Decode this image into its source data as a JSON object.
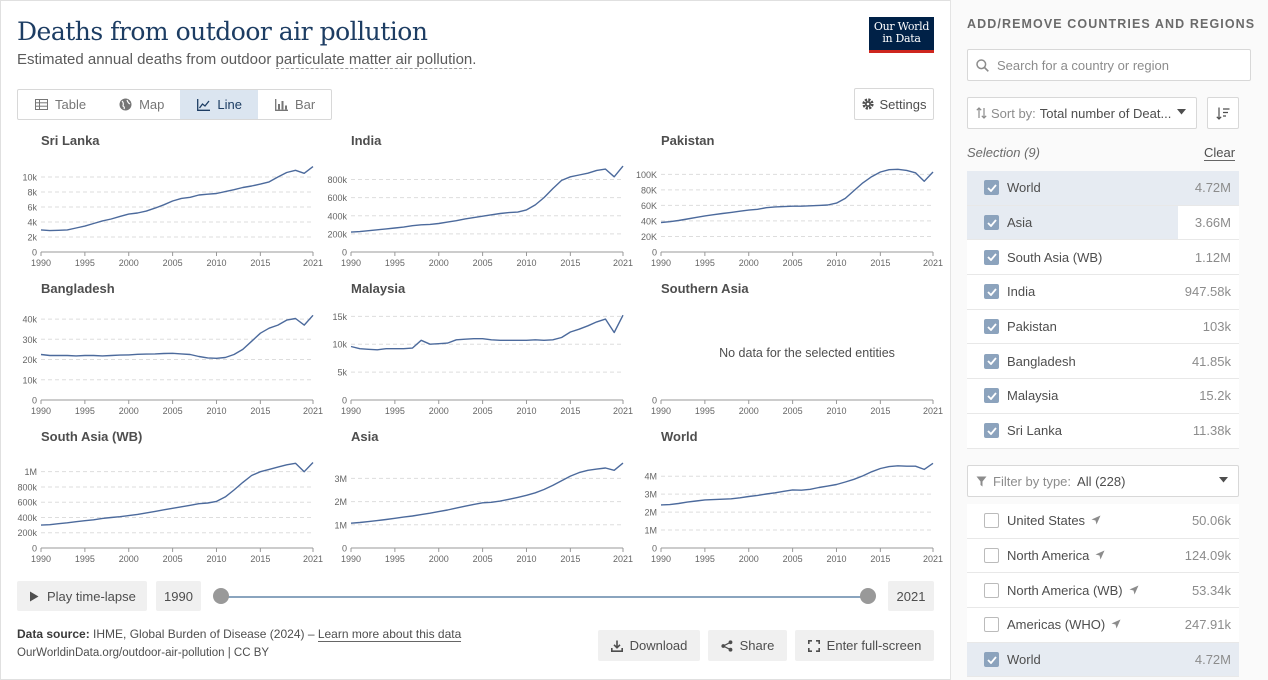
{
  "header": {
    "title": "Deaths from outdoor air pollution",
    "subtitle_prefix": "Estimated annual deaths from outdoor ",
    "subtitle_link": "particulate matter air pollution",
    "subtitle_suffix": ".",
    "logo_line1": "Our World",
    "logo_line2": "in Data"
  },
  "tabs": [
    {
      "label": "Table",
      "icon": "table-icon",
      "active": false
    },
    {
      "label": "Map",
      "icon": "globe-icon",
      "active": false
    },
    {
      "label": "Line",
      "icon": "line-chart-icon",
      "active": true
    },
    {
      "label": "Bar",
      "icon": "bar-chart-icon",
      "active": false
    }
  ],
  "settings_label": "Settings",
  "no_data_text": "No data for the selected entities",
  "colors": {
    "line": "#4c6a9c",
    "accent": "#1d3d63"
  },
  "chart_data": [
    {
      "type": "line",
      "title": "Sri Lanka",
      "x": [
        1990,
        1991,
        1992,
        1993,
        1994,
        1995,
        1996,
        1997,
        1998,
        1999,
        2000,
        2001,
        2002,
        2003,
        2004,
        2005,
        2006,
        2007,
        2008,
        2009,
        2010,
        2011,
        2012,
        2013,
        2014,
        2015,
        2016,
        2017,
        2018,
        2019,
        2020,
        2021
      ],
      "values": [
        2950,
        2850,
        2900,
        2950,
        3200,
        3450,
        3800,
        4150,
        4400,
        4750,
        5050,
        5200,
        5450,
        5850,
        6300,
        6800,
        7150,
        7300,
        7600,
        7700,
        7800,
        8050,
        8300,
        8600,
        8800,
        9050,
        9350,
        10000,
        10600,
        10900,
        10500,
        11380
      ],
      "yticks": [
        0,
        2000,
        4000,
        6000,
        8000,
        10000
      ],
      "ytick_labels": [
        "0",
        "2k",
        "4k",
        "6k",
        "8k",
        "10k"
      ],
      "ylim": [
        0,
        11600
      ]
    },
    {
      "type": "line",
      "title": "India",
      "x": [
        1990,
        1991,
        1992,
        1993,
        1994,
        1995,
        1996,
        1997,
        1998,
        1999,
        2000,
        2001,
        2002,
        2003,
        2004,
        2005,
        2006,
        2007,
        2008,
        2009,
        2010,
        2011,
        2012,
        2013,
        2014,
        2015,
        2016,
        2017,
        2018,
        2019,
        2020,
        2021
      ],
      "values": [
        220000,
        225000,
        235000,
        245000,
        255000,
        265000,
        275000,
        290000,
        300000,
        305000,
        315000,
        330000,
        345000,
        365000,
        380000,
        395000,
        410000,
        425000,
        435000,
        440000,
        465000,
        520000,
        600000,
        700000,
        790000,
        830000,
        850000,
        870000,
        900000,
        915000,
        830000,
        947580
      ],
      "yticks": [
        0,
        200000,
        400000,
        600000,
        800000
      ],
      "ytick_labels": [
        "0",
        "200k",
        "400k",
        "600k",
        "800k"
      ],
      "ylim": [
        0,
        960000
      ]
    },
    {
      "type": "line",
      "title": "Pakistan",
      "x": [
        1990,
        1991,
        1992,
        1993,
        1994,
        1995,
        1996,
        1997,
        1998,
        1999,
        2000,
        2001,
        2002,
        2003,
        2004,
        2005,
        2006,
        2007,
        2008,
        2009,
        2010,
        2011,
        2012,
        2013,
        2014,
        2015,
        2016,
        2017,
        2018,
        2019,
        2020,
        2021
      ],
      "values": [
        38000,
        39000,
        40500,
        42500,
        44500,
        46500,
        48000,
        49500,
        51000,
        52500,
        54000,
        55000,
        57000,
        58000,
        58500,
        59000,
        59000,
        59500,
        60000,
        60500,
        63000,
        69000,
        79000,
        89000,
        97000,
        103000,
        106000,
        106500,
        105000,
        102000,
        91000,
        103000
      ],
      "yticks": [
        0,
        20000,
        40000,
        60000,
        80000,
        100000
      ],
      "ytick_labels": [
        "0",
        "20K",
        "40K",
        "60K",
        "80K",
        "100K"
      ],
      "ylim": [
        0,
        112000
      ]
    },
    {
      "type": "line",
      "title": "Bangladesh",
      "x": [
        1990,
        1991,
        1992,
        1993,
        1994,
        1995,
        1996,
        1997,
        1998,
        1999,
        2000,
        2001,
        2002,
        2003,
        2004,
        2005,
        2006,
        2007,
        2008,
        2009,
        2010,
        2011,
        2012,
        2013,
        2014,
        2015,
        2016,
        2017,
        2018,
        2019,
        2020,
        2021
      ],
      "values": [
        22500,
        22000,
        22000,
        22000,
        21800,
        22000,
        22000,
        21800,
        22000,
        22200,
        22300,
        22600,
        22700,
        22800,
        23000,
        23100,
        22800,
        22500,
        21500,
        20800,
        20600,
        21000,
        22500,
        25000,
        29000,
        33000,
        35500,
        37000,
        39500,
        40300,
        37000,
        41850
      ],
      "yticks": [
        0,
        10000,
        20000,
        30000,
        40000
      ],
      "ytick_labels": [
        "0",
        "10k",
        "20k",
        "30k",
        "40k"
      ],
      "ylim": [
        0,
        43000
      ]
    },
    {
      "type": "line",
      "title": "Malaysia",
      "x": [
        1990,
        1991,
        1992,
        1993,
        1994,
        1995,
        1996,
        1997,
        1998,
        1999,
        2000,
        2001,
        2002,
        2003,
        2004,
        2005,
        2006,
        2007,
        2008,
        2009,
        2010,
        2011,
        2012,
        2013,
        2014,
        2015,
        2016,
        2017,
        2018,
        2019,
        2020,
        2021
      ],
      "values": [
        9600,
        9200,
        9100,
        9000,
        9200,
        9200,
        9200,
        9300,
        10700,
        10000,
        10100,
        10200,
        10800,
        10900,
        11000,
        11000,
        10800,
        10700,
        10700,
        10700,
        10700,
        10800,
        10700,
        10800,
        11200,
        12200,
        12700,
        13300,
        14000,
        14500,
        12100,
        15200
      ],
      "yticks": [
        0,
        5000,
        10000,
        15000
      ],
      "ytick_labels": [
        "0",
        "5k",
        "10k",
        "15k"
      ],
      "ylim": [
        0,
        15600
      ]
    },
    {
      "type": "line",
      "title": "Southern Asia",
      "x": [],
      "values": [],
      "yticks": [
        0
      ],
      "ytick_labels": [
        "0"
      ],
      "ylim": [
        0,
        1
      ],
      "no_data": true
    },
    {
      "type": "line",
      "title": "South Asia (WB)",
      "x": [
        1990,
        1991,
        1992,
        1993,
        1994,
        1995,
        1996,
        1997,
        1998,
        1999,
        2000,
        2001,
        2002,
        2003,
        2004,
        2005,
        2006,
        2007,
        2008,
        2009,
        2010,
        2011,
        2012,
        2013,
        2014,
        2015,
        2016,
        2017,
        2018,
        2019,
        2020,
        2021
      ],
      "values": [
        300000,
        305000,
        318000,
        330000,
        345000,
        358000,
        370000,
        388000,
        400000,
        410000,
        425000,
        440000,
        460000,
        480000,
        500000,
        520000,
        540000,
        560000,
        580000,
        590000,
        610000,
        670000,
        760000,
        860000,
        950000,
        1000000,
        1030000,
        1060000,
        1090000,
        1110000,
        1000000,
        1120000
      ],
      "yticks": [
        0,
        200000,
        400000,
        600000,
        800000,
        1000000
      ],
      "ytick_labels": [
        "0",
        "200k",
        "400k",
        "600k",
        "800k",
        "1M"
      ],
      "ylim": [
        0,
        1140000
      ]
    },
    {
      "type": "line",
      "title": "Asia",
      "x": [
        1990,
        1991,
        1992,
        1993,
        1994,
        1995,
        1996,
        1997,
        1998,
        1999,
        2000,
        2001,
        2002,
        2003,
        2004,
        2005,
        2006,
        2007,
        2008,
        2009,
        2010,
        2011,
        2012,
        2013,
        2014,
        2015,
        2016,
        2017,
        2018,
        2019,
        2020,
        2021
      ],
      "values": [
        1070000,
        1100000,
        1140000,
        1180000,
        1230000,
        1280000,
        1330000,
        1380000,
        1440000,
        1500000,
        1570000,
        1640000,
        1720000,
        1800000,
        1880000,
        1950000,
        1970000,
        2020000,
        2100000,
        2180000,
        2270000,
        2380000,
        2520000,
        2700000,
        2900000,
        3100000,
        3250000,
        3350000,
        3400000,
        3450000,
        3350000,
        3660000
      ],
      "yticks": [
        0,
        1000000,
        2000000,
        3000000
      ],
      "ytick_labels": [
        "0",
        "1M",
        "2M",
        "3M"
      ],
      "ylim": [
        0,
        3750000
      ]
    },
    {
      "type": "line",
      "title": "World",
      "x": [
        1990,
        1991,
        1992,
        1993,
        1994,
        1995,
        1996,
        1997,
        1998,
        1999,
        2000,
        2001,
        2002,
        2003,
        2004,
        2005,
        2006,
        2007,
        2008,
        2009,
        2010,
        2011,
        2012,
        2013,
        2014,
        2015,
        2016,
        2017,
        2018,
        2019,
        2020,
        2021
      ],
      "values": [
        2400000,
        2420000,
        2480000,
        2560000,
        2620000,
        2680000,
        2700000,
        2720000,
        2740000,
        2800000,
        2870000,
        2930000,
        3010000,
        3080000,
        3160000,
        3240000,
        3220000,
        3270000,
        3370000,
        3450000,
        3540000,
        3680000,
        3830000,
        4020000,
        4250000,
        4430000,
        4540000,
        4580000,
        4560000,
        4560000,
        4380000,
        4720000
      ],
      "yticks": [
        0,
        1000000,
        2000000,
        3000000,
        4000000
      ],
      "ytick_labels": [
        "0",
        "1M",
        "2M",
        "3M",
        "4M"
      ],
      "ylim": [
        0,
        4850000
      ]
    }
  ],
  "xtick_years": [
    1990,
    1995,
    2000,
    2005,
    2010,
    2015,
    2021
  ],
  "timeline": {
    "play_label": "Play time-lapse",
    "start_year": "1990",
    "end_year": "2021"
  },
  "footer": {
    "source_label": "Data source:",
    "source_text": "IHME, Global Burden of Disease (2024) – ",
    "source_link": "Learn more about this data",
    "license": "OurWorldinData.org/outdoor-air-pollution | CC BY",
    "download_label": "Download",
    "share_label": "Share",
    "fullscreen_label": "Enter full-screen"
  },
  "sidebar": {
    "heading": "ADD/REMOVE COUNTRIES AND REGIONS",
    "search_placeholder": "Search for a country or region",
    "sort_label": "Sort by:",
    "sort_value": "Total number of Deat...",
    "selection_label": "Selection (9)",
    "clear_label": "Clear",
    "selected": [
      {
        "name": "World",
        "value": "4.72M",
        "bar_fraction": 1.0
      },
      {
        "name": "Asia",
        "value": "3.66M",
        "bar_fraction": 0.775
      },
      {
        "name": "South Asia (WB)",
        "value": "1.12M",
        "bar_fraction": 0.0
      },
      {
        "name": "India",
        "value": "947.58k",
        "bar_fraction": 0.0
      },
      {
        "name": "Pakistan",
        "value": "103k",
        "bar_fraction": 0.0
      },
      {
        "name": "Bangladesh",
        "value": "41.85k",
        "bar_fraction": 0.0
      },
      {
        "name": "Malaysia",
        "value": "15.2k",
        "bar_fraction": 0.0
      },
      {
        "name": "Sri Lanka",
        "value": "11.38k",
        "bar_fraction": 0.0
      }
    ],
    "filter_label": "Filter by type:",
    "filter_value": "All (228)",
    "available": [
      {
        "name": "United States",
        "value": "50.06k",
        "checked": false,
        "bar_fraction": 0.0
      },
      {
        "name": "North America",
        "value": "124.09k",
        "checked": false,
        "bar_fraction": 0.0
      },
      {
        "name": "North America (WB)",
        "value": "53.34k",
        "checked": false,
        "bar_fraction": 0.0
      },
      {
        "name": "Americas (WHO)",
        "value": "247.91k",
        "checked": false,
        "bar_fraction": 0.0
      },
      {
        "name": "World",
        "value": "4.72M",
        "checked": true,
        "bar_fraction": 1.0
      }
    ]
  }
}
